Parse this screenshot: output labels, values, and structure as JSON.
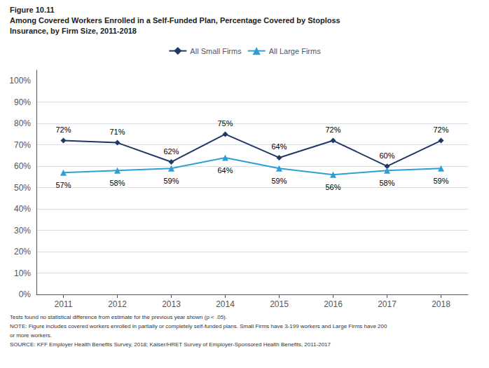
{
  "chart_data": {
    "type": "line",
    "title": "Figure 10.11",
    "subtitle": [
      "Among Covered Workers Enrolled in a Self-Funded Plan, Percentage Covered by Stoploss",
      "Insurance, by Firm Size, 2011-2018"
    ],
    "annotations": [
      "Tests found no statistical difference from estimate for the previous year shown (p < .05).",
      "NOTE: Figure includes covered workers enrolled in partially or completely self-funded plans. Small Firms have 3-199 workers and Large Firms have 200",
      "or more workers.",
      "SOURCE: KFF Employer Health Benefits Survey, 2018; Kaiser/HRET Survey of Employer-Sponsored Health Benefits, 2011-2017"
    ],
    "x": [
      2011,
      2012,
      2013,
      2014,
      2015,
      2016,
      2017,
      2018
    ],
    "xlim": [
      2010.5,
      2018.5
    ],
    "xticks": [
      2011,
      2012,
      2013,
      2014,
      2015,
      2016,
      2017,
      2018
    ],
    "ylim": [
      0,
      105
    ],
    "yticks": [
      {
        "value": 0,
        "label": "0%"
      },
      {
        "value": 10,
        "label": "10%"
      },
      {
        "value": 20,
        "label": "20%"
      },
      {
        "value": 30,
        "label": "30%"
      },
      {
        "value": 40,
        "label": "40%"
      },
      {
        "value": 50,
        "label": "50%"
      },
      {
        "value": 60,
        "label": "60%"
      },
      {
        "value": 70,
        "label": "70%"
      },
      {
        "value": 80,
        "label": "80%"
      },
      {
        "value": 90,
        "label": "90%"
      },
      {
        "value": 100,
        "label": "100%"
      }
    ],
    "grid": true,
    "data_labels": true,
    "series": [
      {
        "name": "All Small Firms",
        "color": "#1f3864",
        "marker": "diamond",
        "values": [
          72,
          71,
          62,
          75,
          64,
          72,
          60,
          72
        ],
        "value_labels": [
          "72%",
          "71%",
          "62%",
          "75%",
          "64%",
          "72%",
          "60%",
          "72%"
        ]
      },
      {
        "name": "All Large Firms",
        "color": "#2e9fd4",
        "marker": "triangle",
        "values": [
          57,
          58,
          59,
          64,
          59,
          56,
          58,
          59
        ],
        "value_labels": [
          "57%",
          "58%",
          "59%",
          "64%",
          "59%",
          "56%",
          "58%",
          "59%"
        ]
      }
    ]
  }
}
